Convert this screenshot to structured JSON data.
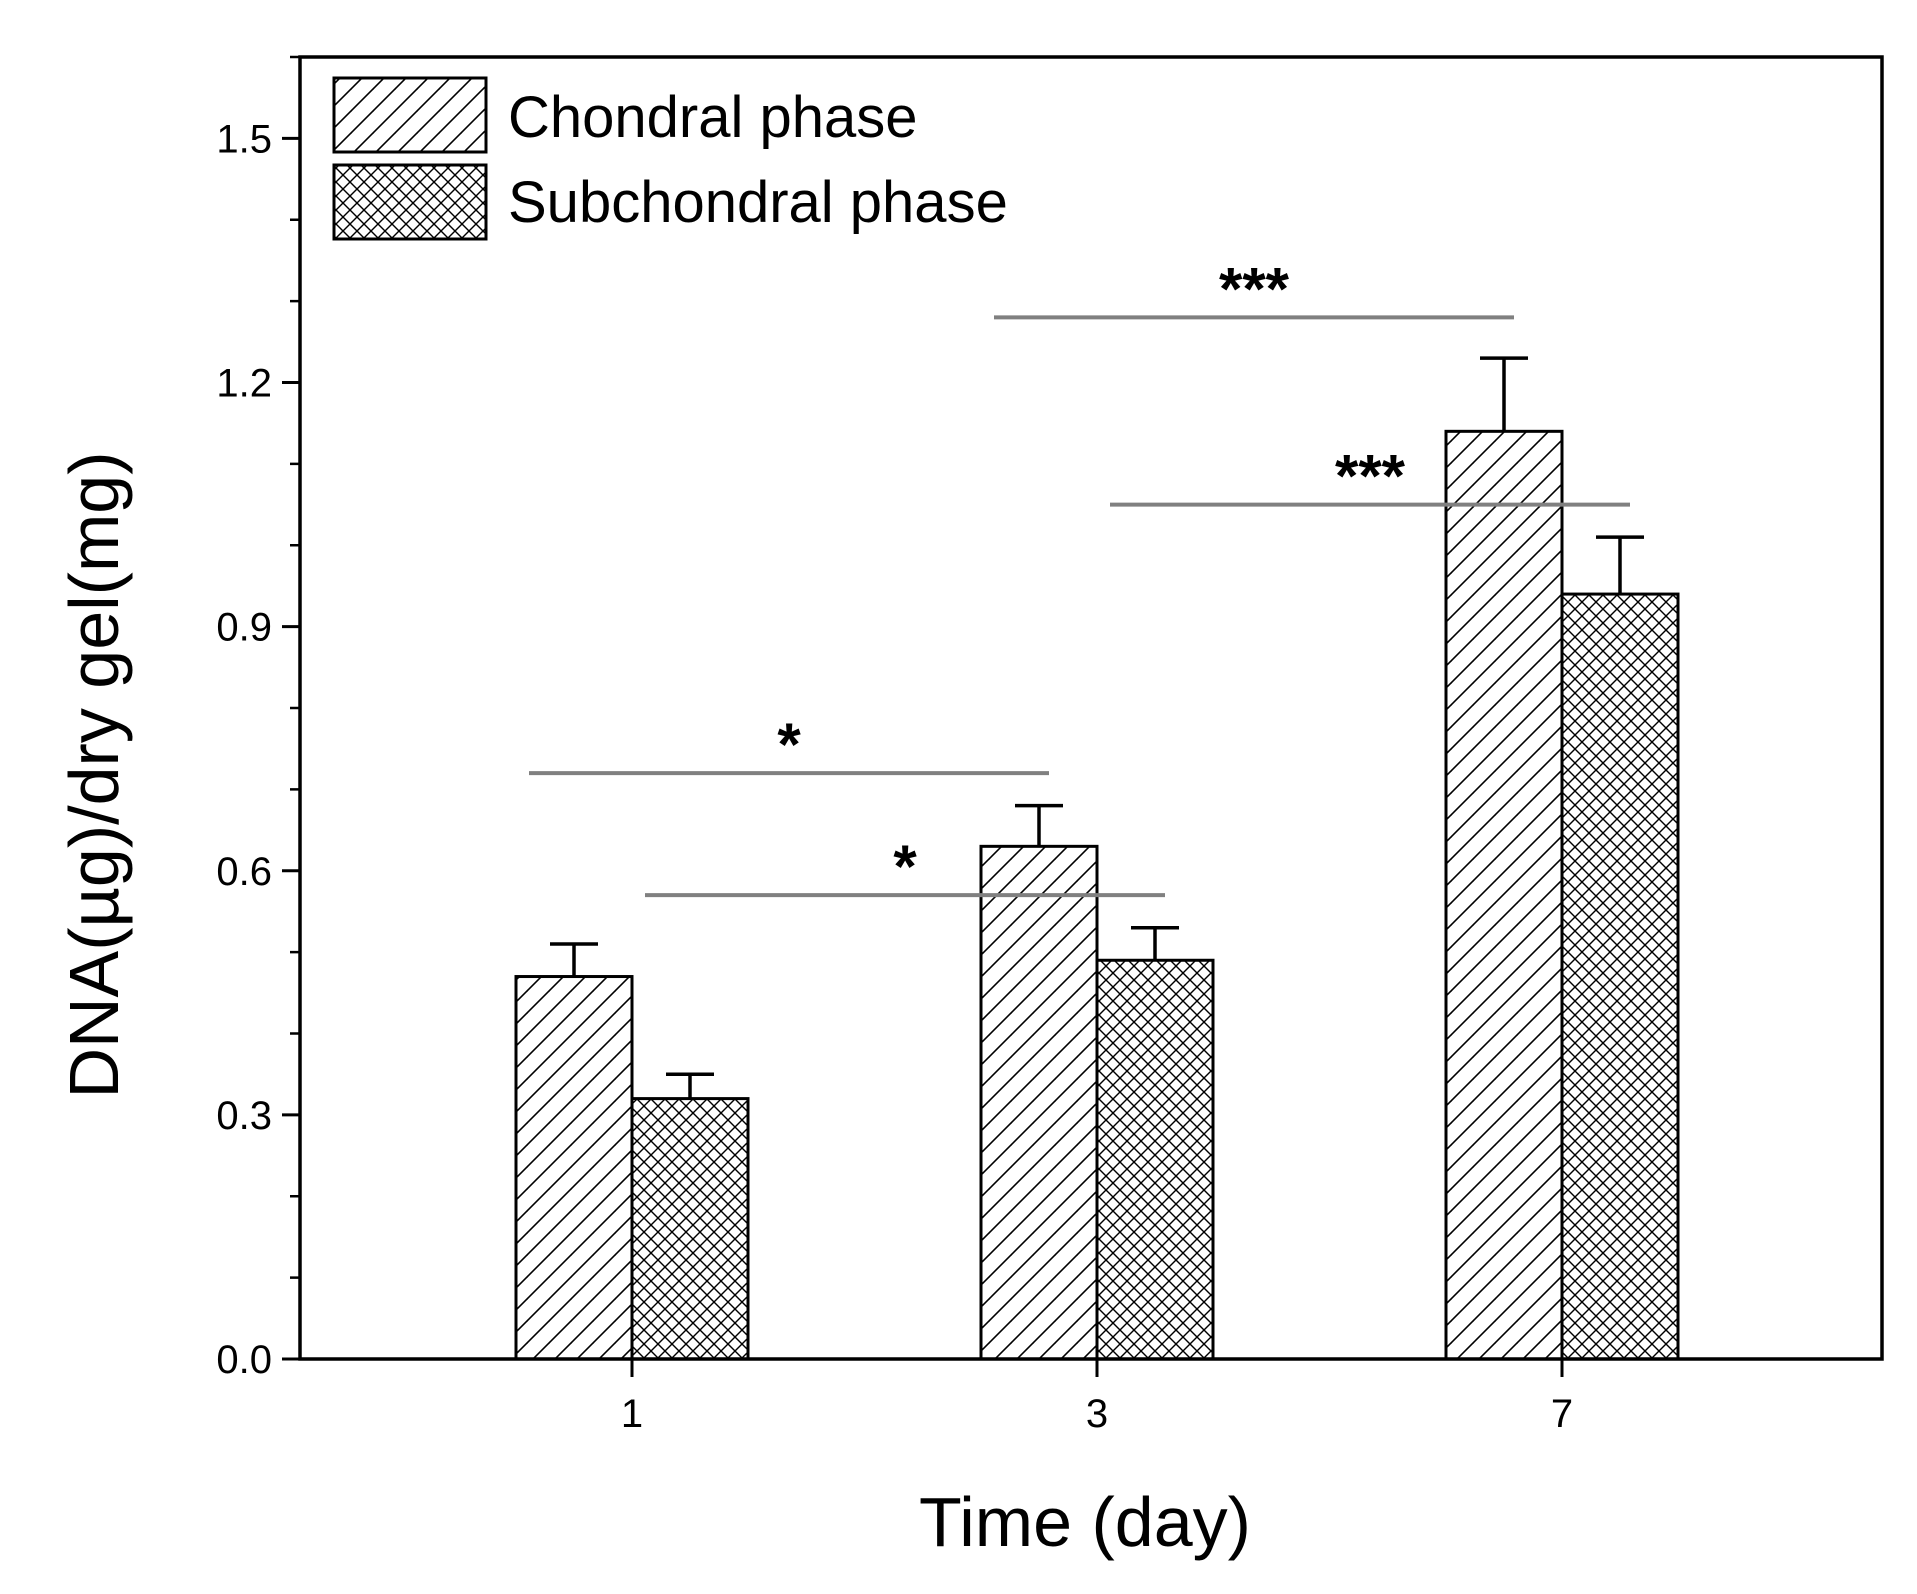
{
  "chart_data": {
    "type": "bar",
    "xlabel": "Time (day)",
    "ylabel": "DNA(µg)/dry gel(mg)",
    "categories": [
      "1",
      "3",
      "7"
    ],
    "ylim": [
      0,
      1.6
    ],
    "yticks": [
      "0.0",
      "0.3",
      "0.6",
      "0.9",
      "1.2",
      "1.5"
    ],
    "series": [
      {
        "name": "Chondral phase",
        "values": [
          0.47,
          0.63,
          1.14
        ],
        "errors": [
          0.04,
          0.05,
          0.09
        ],
        "pattern": "diagonal-hatch"
      },
      {
        "name": "Subchondral phase",
        "values": [
          0.32,
          0.49,
          0.94
        ],
        "errors": [
          0.03,
          0.04,
          0.07
        ],
        "pattern": "crosshatch"
      }
    ],
    "significance": [
      {
        "label": "*",
        "from_category": "1",
        "from_series": "Chondral phase",
        "to_category": "3",
        "to_series": "Chondral phase",
        "y": 0.72
      },
      {
        "label": "*",
        "from_category": "1",
        "from_series": "Subchondral phase",
        "to_category": "3",
        "to_series": "Subchondral phase",
        "y": 0.57
      },
      {
        "label": "***",
        "from_category": "3",
        "from_series": "Chondral phase",
        "to_category": "7",
        "to_series": "Chondral phase",
        "y": 1.28
      },
      {
        "label": "***",
        "from_category": "3",
        "from_series": "Subchondral phase",
        "to_category": "7",
        "to_series": "Subchondral phase",
        "y": 1.05
      }
    ],
    "legend_position": "top-left",
    "grid": false,
    "colors": {
      "bar_stroke": "#000000",
      "bar_fill": "#ffffff",
      "sig_line": "#808080"
    }
  }
}
